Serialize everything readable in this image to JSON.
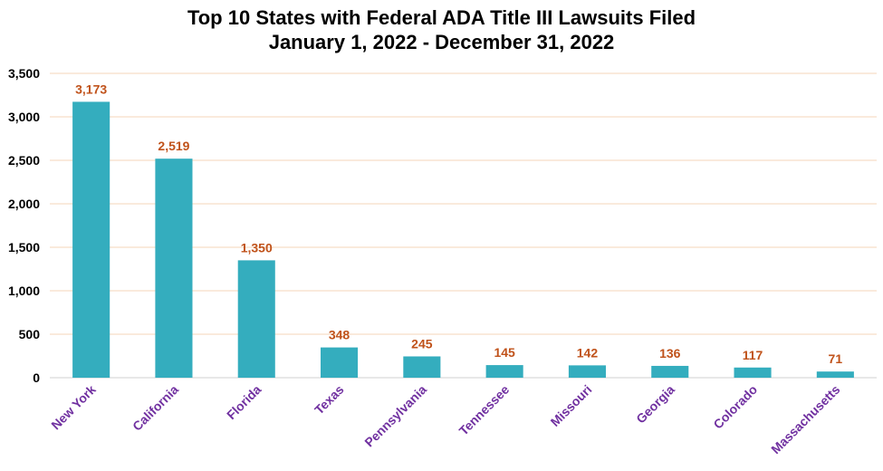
{
  "chart_data": {
    "type": "bar",
    "title": "Top 10 States with Federal ADA Title III Lawsuits Filed",
    "subtitle": "January 1, 2022 - December 31, 2022",
    "categories": [
      "New York",
      "California",
      "Florida",
      "Texas",
      "Pennsylvania",
      "Tennessee",
      "Missouri",
      "Georgia",
      "Colorado",
      "Massachusetts"
    ],
    "values": [
      3173,
      2519,
      1350,
      348,
      245,
      145,
      142,
      136,
      117,
      71
    ],
    "data_labels": [
      "3,173",
      "2,519",
      "1,350",
      "348",
      "245",
      "145",
      "142",
      "136",
      "117",
      "71"
    ],
    "yticks": [
      "0",
      "500",
      "1,000",
      "1,500",
      "2,000",
      "2,500",
      "3,000",
      "3,500"
    ],
    "ylim": [
      0,
      3500
    ],
    "xlabel": "",
    "ylabel": "",
    "grid": true,
    "legend": "none",
    "colors": {
      "bar": "#34ADBE",
      "data_label": "#C0521A",
      "category_label": "#7030A0",
      "gridline": "#F5D5B8",
      "axis": "#D0D0D0"
    }
  }
}
